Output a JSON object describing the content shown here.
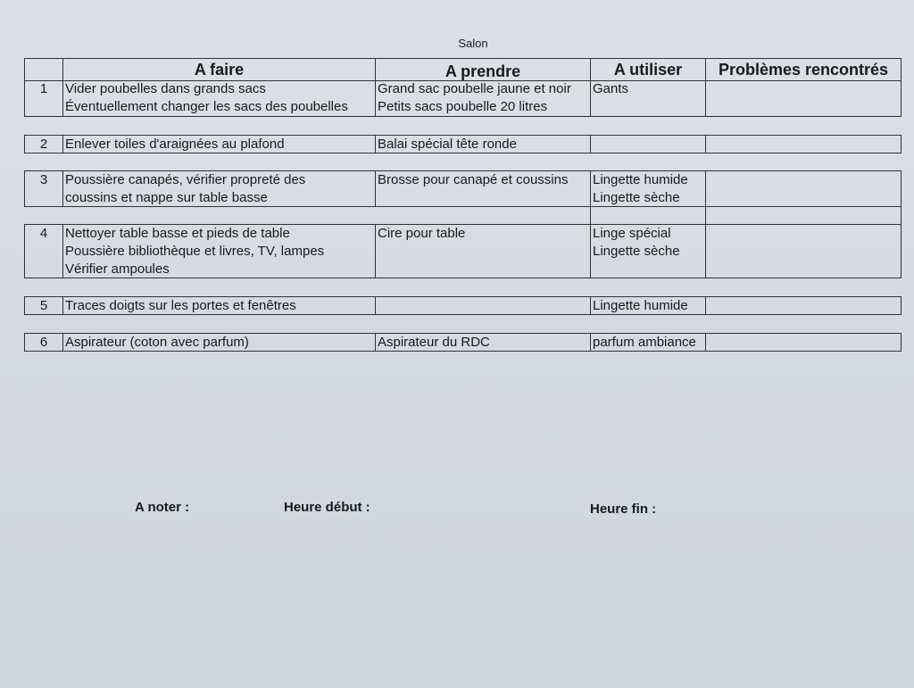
{
  "title": "Salon",
  "columns": [
    "",
    "A faire",
    "A prendre",
    "A utiliser",
    "Problèmes rencontrés"
  ],
  "rows": [
    {
      "num": "1",
      "faire": [
        "Vider poubelles dans grands sacs",
        "Éventuellement changer les sacs des poubelles"
      ],
      "prendre": [
        "Grand sac poubelle jaune et noir",
        "Petits sacs poubelle 20 litres"
      ],
      "utiliser": [
        "Gants"
      ],
      "problemes": ""
    },
    {
      "num": "2",
      "faire": [
        "Enlever toiles d'araignées au plafond"
      ],
      "prendre": [
        "Balai spécial tête ronde"
      ],
      "utiliser": [],
      "problemes": ""
    },
    {
      "num": "3",
      "faire": [
        "Poussière canapés, vérifier propreté des",
        "coussins et nappe sur table basse"
      ],
      "prendre": [
        "Brosse pour canapé et coussins"
      ],
      "utiliser": [
        "Lingette humide",
        "Lingette sèche"
      ],
      "problemes": ""
    },
    {
      "num": "4",
      "faire": [
        "Nettoyer table basse et pieds de table",
        "Poussière bibliothèque et livres, TV, lampes",
        "Vérifier ampoules"
      ],
      "prendre": [
        "Cire pour table"
      ],
      "utiliser": [
        "Linge spécial",
        "Lingette sèche"
      ],
      "problemes": ""
    },
    {
      "num": "5",
      "faire": [
        "Traces doigts sur les portes et fenêtres"
      ],
      "prendre": [],
      "utiliser": [
        "Lingette humide"
      ],
      "problemes": ""
    },
    {
      "num": "6",
      "faire": [
        "Aspirateur (coton avec parfum)"
      ],
      "prendre": [
        "Aspirateur du RDC"
      ],
      "utiliser": [
        "parfum ambiance"
      ],
      "problemes": ""
    }
  ],
  "footer": {
    "noter": "A noter :",
    "debut": "Heure début :",
    "fin": "Heure fin :"
  }
}
